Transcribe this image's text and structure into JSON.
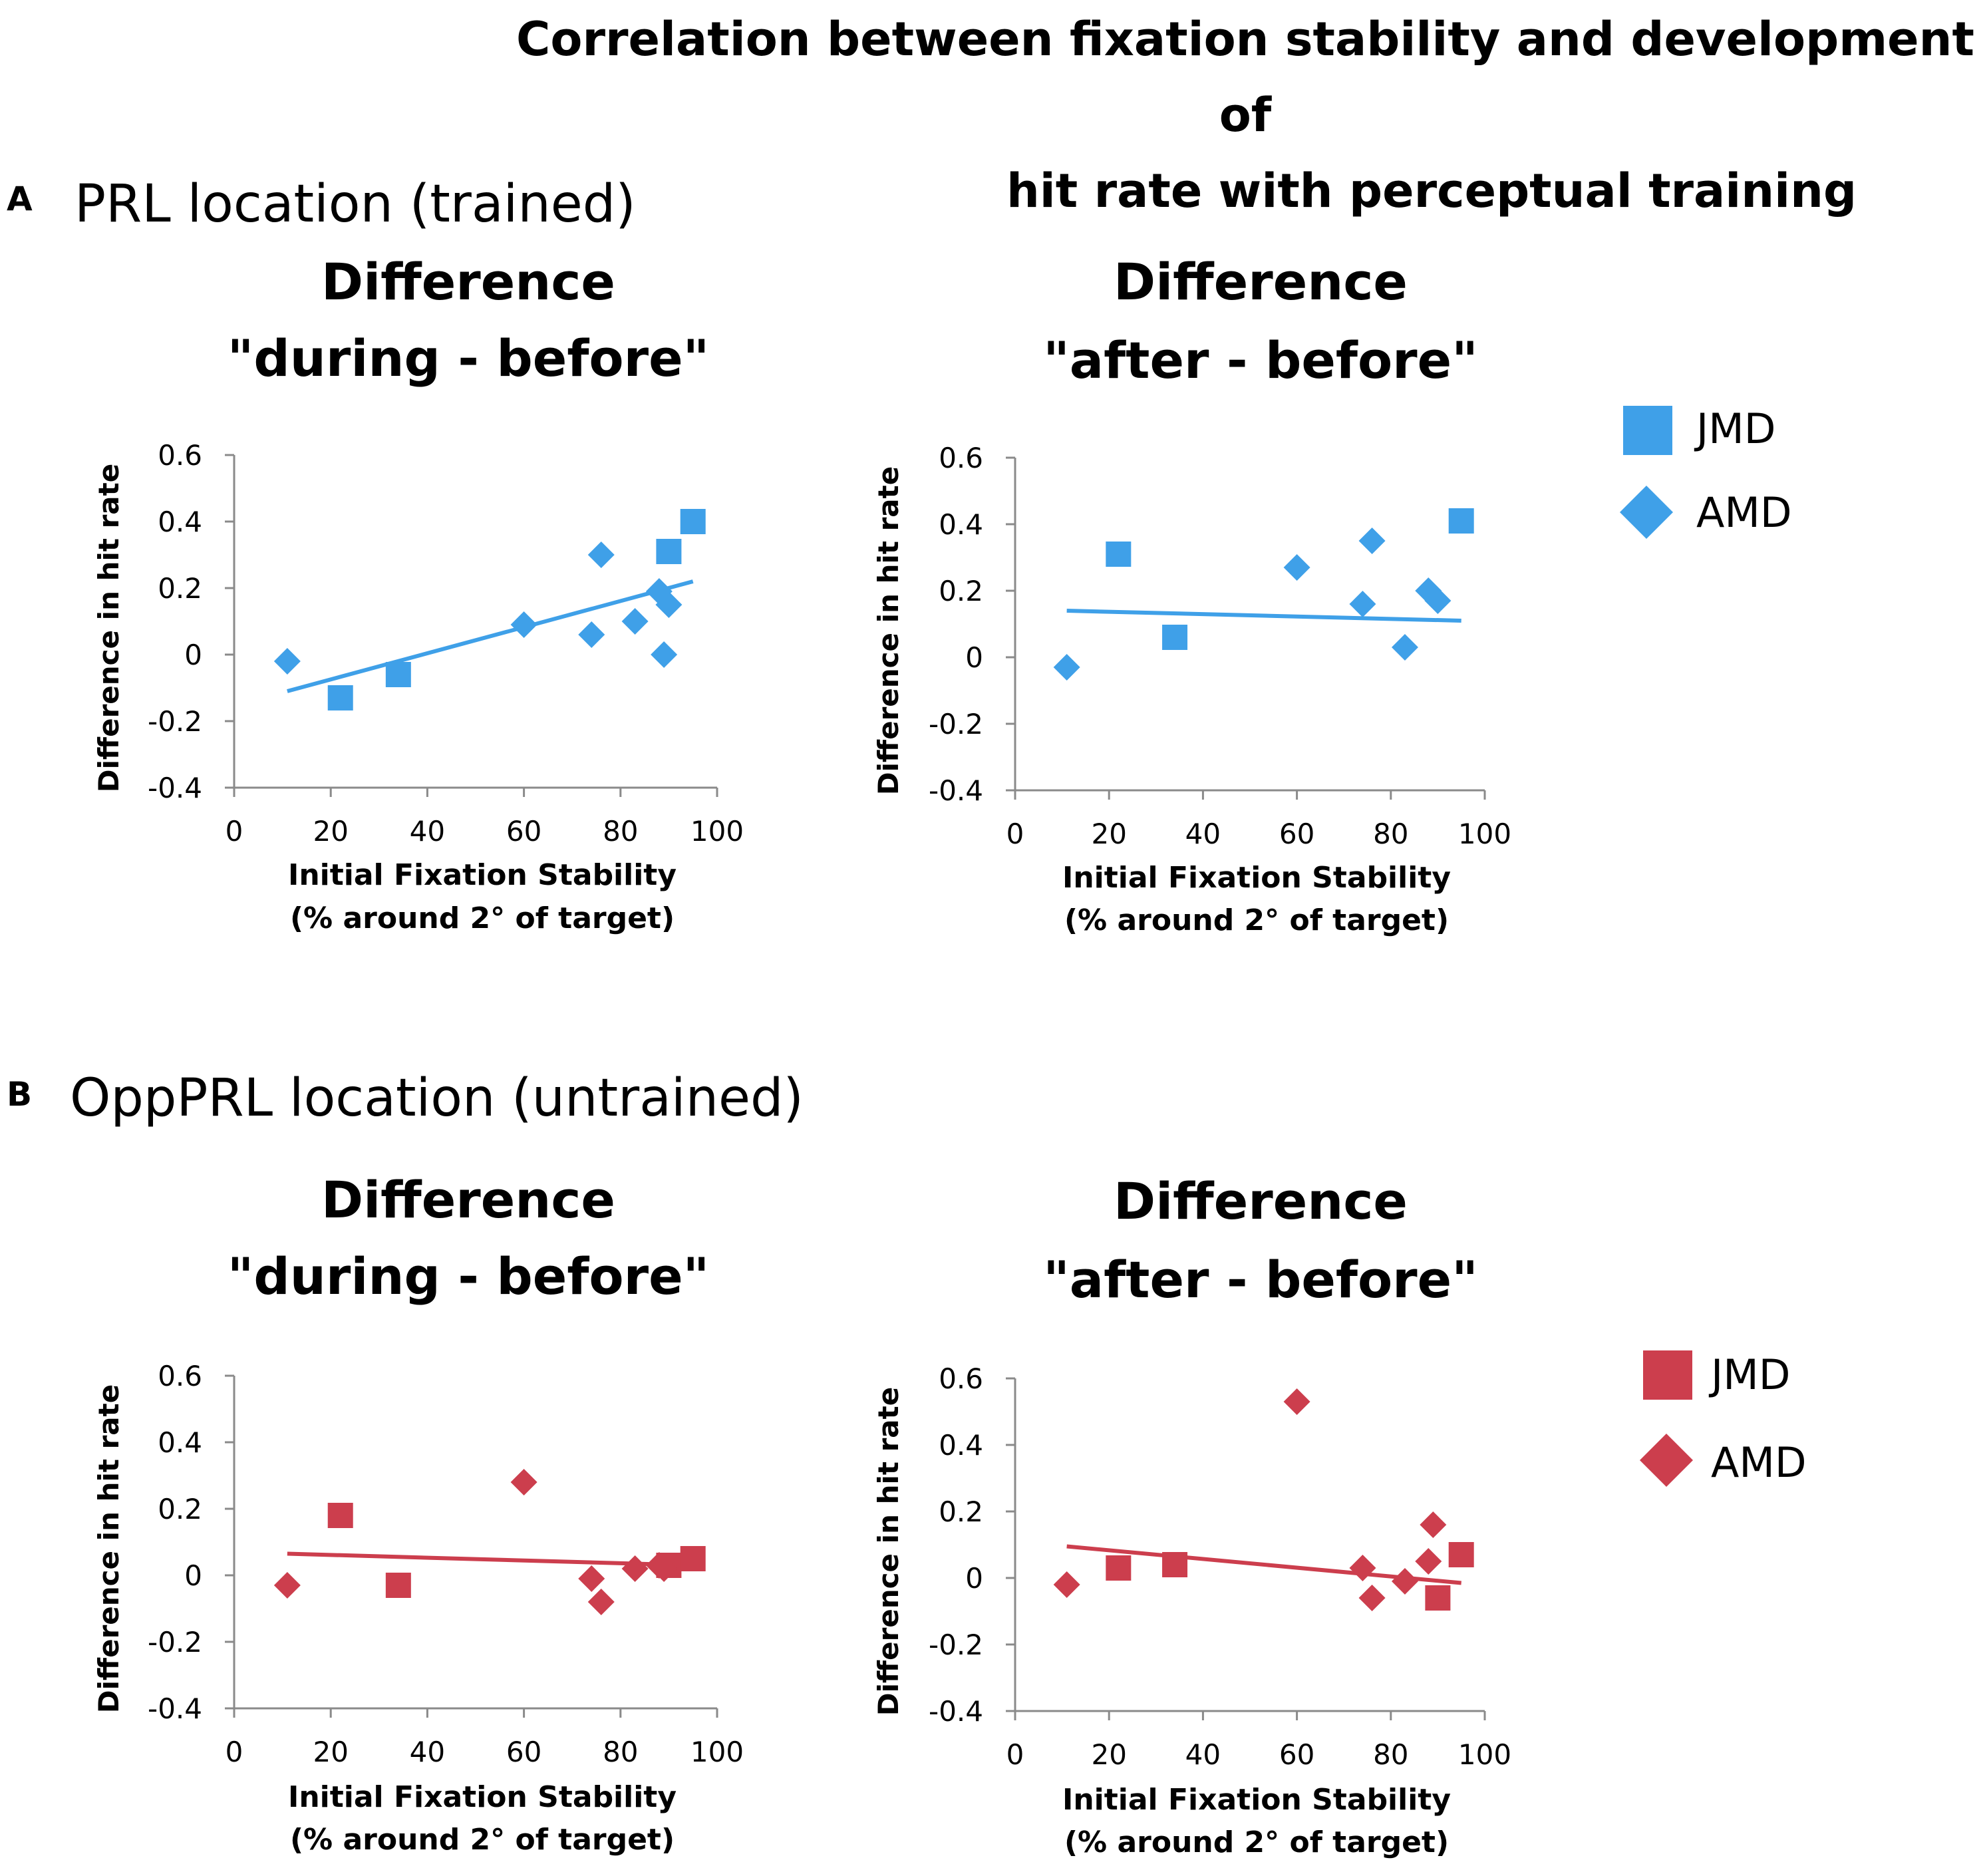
{
  "figure_title": {
    "line1": "Correlation between fixation stability and development of",
    "line2": "hit rate with perceptual training"
  },
  "panels": [
    {
      "letter": "A",
      "heading": "PRL location (trained)",
      "color": "#3fa0e8"
    },
    {
      "letter": "B",
      "heading": "OppPRL location (untrained)",
      "color": "#cc3e4d"
    }
  ],
  "legends": [
    {
      "panel": "A",
      "items": [
        {
          "label": "JMD",
          "marker": "square-icon"
        },
        {
          "label": "AMD",
          "marker": "diamond-icon"
        }
      ]
    },
    {
      "panel": "B",
      "items": [
        {
          "label": "JMD",
          "marker": "square-icon"
        },
        {
          "label": "AMD",
          "marker": "diamond-icon"
        }
      ]
    }
  ],
  "chart_data": [
    {
      "type": "scatter",
      "panel": "A",
      "color": "#3fa0e8",
      "title": [
        "Difference",
        "\"during - before\""
      ],
      "xlabel": [
        "Initial Fixation Stability",
        "(% around 2° of target)"
      ],
      "ylabel": "Difference in hit rate",
      "xlim": [
        0,
        100
      ],
      "ylim": [
        -0.4,
        0.6
      ],
      "xticks": [
        "0",
        "20",
        "40",
        "60",
        "80",
        "100"
      ],
      "yticks": [
        "-0.4",
        "-0.2",
        "0",
        "0.2",
        "0.4",
        "0.6"
      ],
      "series": [
        {
          "name": "JMD",
          "marker": "square",
          "x": [
            22,
            34,
            90,
            95
          ],
          "y": [
            -0.13,
            -0.06,
            0.31,
            0.4
          ]
        },
        {
          "name": "AMD",
          "marker": "diamond",
          "x": [
            11,
            60,
            74,
            76,
            83,
            88,
            89,
            90
          ],
          "y": [
            -0.02,
            0.09,
            0.06,
            0.3,
            0.1,
            0.19,
            0.0,
            0.15
          ]
        }
      ],
      "trendline": {
        "x": [
          11,
          95
        ],
        "y": [
          -0.11,
          0.22
        ]
      }
    },
    {
      "type": "scatter",
      "panel": "A",
      "color": "#3fa0e8",
      "title": [
        "Difference",
        "\"after - before\""
      ],
      "xlabel": [
        "Initial Fixation Stability",
        "(% around 2° of target)"
      ],
      "ylabel": "Difference in hit rate",
      "xlim": [
        0,
        100
      ],
      "ylim": [
        -0.4,
        0.6
      ],
      "xticks": [
        "0",
        "20",
        "40",
        "60",
        "80",
        "100"
      ],
      "yticks": [
        "-0.4",
        "-0.2",
        "0",
        "0.2",
        "0.4",
        "0.6"
      ],
      "series": [
        {
          "name": "JMD",
          "marker": "square",
          "x": [
            22,
            34,
            95
          ],
          "y": [
            0.31,
            0.06,
            0.41
          ]
        },
        {
          "name": "AMD",
          "marker": "diamond",
          "x": [
            11,
            60,
            74,
            76,
            83,
            88,
            90
          ],
          "y": [
            -0.03,
            0.27,
            0.16,
            0.35,
            0.03,
            0.2,
            0.17
          ]
        }
      ],
      "trendline": {
        "x": [
          11,
          95
        ],
        "y": [
          0.14,
          0.11
        ]
      }
    },
    {
      "type": "scatter",
      "panel": "B",
      "color": "#cc3e4d",
      "title": [
        "Difference",
        "\"during - before\""
      ],
      "xlabel": [
        "Initial Fixation Stability",
        "(% around 2° of target)"
      ],
      "ylabel": "Difference in hit rate",
      "xlim": [
        0,
        100
      ],
      "ylim": [
        -0.4,
        0.6
      ],
      "xticks": [
        "0",
        "20",
        "40",
        "60",
        "80",
        "100"
      ],
      "yticks": [
        "-0.4",
        "-0.2",
        "0",
        "0.2",
        "0.4",
        "0.6"
      ],
      "series": [
        {
          "name": "JMD",
          "marker": "square",
          "x": [
            22,
            34,
            90,
            95
          ],
          "y": [
            0.18,
            -0.03,
            0.03,
            0.05
          ]
        },
        {
          "name": "AMD",
          "marker": "diamond",
          "x": [
            11,
            60,
            74,
            76,
            83,
            88,
            89
          ],
          "y": [
            -0.03,
            0.28,
            -0.01,
            -0.08,
            0.02,
            0.03,
            0.02
          ]
        }
      ],
      "trendline": {
        "x": [
          11,
          95
        ],
        "y": [
          0.065,
          0.03
        ]
      }
    },
    {
      "type": "scatter",
      "panel": "B",
      "color": "#cc3e4d",
      "title": [
        "Difference",
        "\"after - before\""
      ],
      "xlabel": [
        "Initial Fixation Stability",
        "(% around 2° of target)"
      ],
      "ylabel": "Difference in hit rate",
      "xlim": [
        0,
        100
      ],
      "ylim": [
        -0.4,
        0.6
      ],
      "xticks": [
        "0",
        "20",
        "40",
        "60",
        "80",
        "100"
      ],
      "yticks": [
        "-0.4",
        "-0.2",
        "0",
        "0.2",
        "0.4",
        "0.6"
      ],
      "series": [
        {
          "name": "JMD",
          "marker": "square",
          "x": [
            22,
            34,
            90,
            95
          ],
          "y": [
            0.03,
            0.04,
            -0.06,
            0.07
          ]
        },
        {
          "name": "AMD",
          "marker": "diamond",
          "x": [
            11,
            60,
            74,
            76,
            83,
            88,
            89
          ],
          "y": [
            -0.02,
            0.53,
            0.03,
            -0.06,
            -0.01,
            0.05,
            0.16
          ]
        }
      ],
      "trendline": {
        "x": [
          11,
          95
        ],
        "y": [
          0.095,
          -0.015
        ]
      }
    }
  ]
}
